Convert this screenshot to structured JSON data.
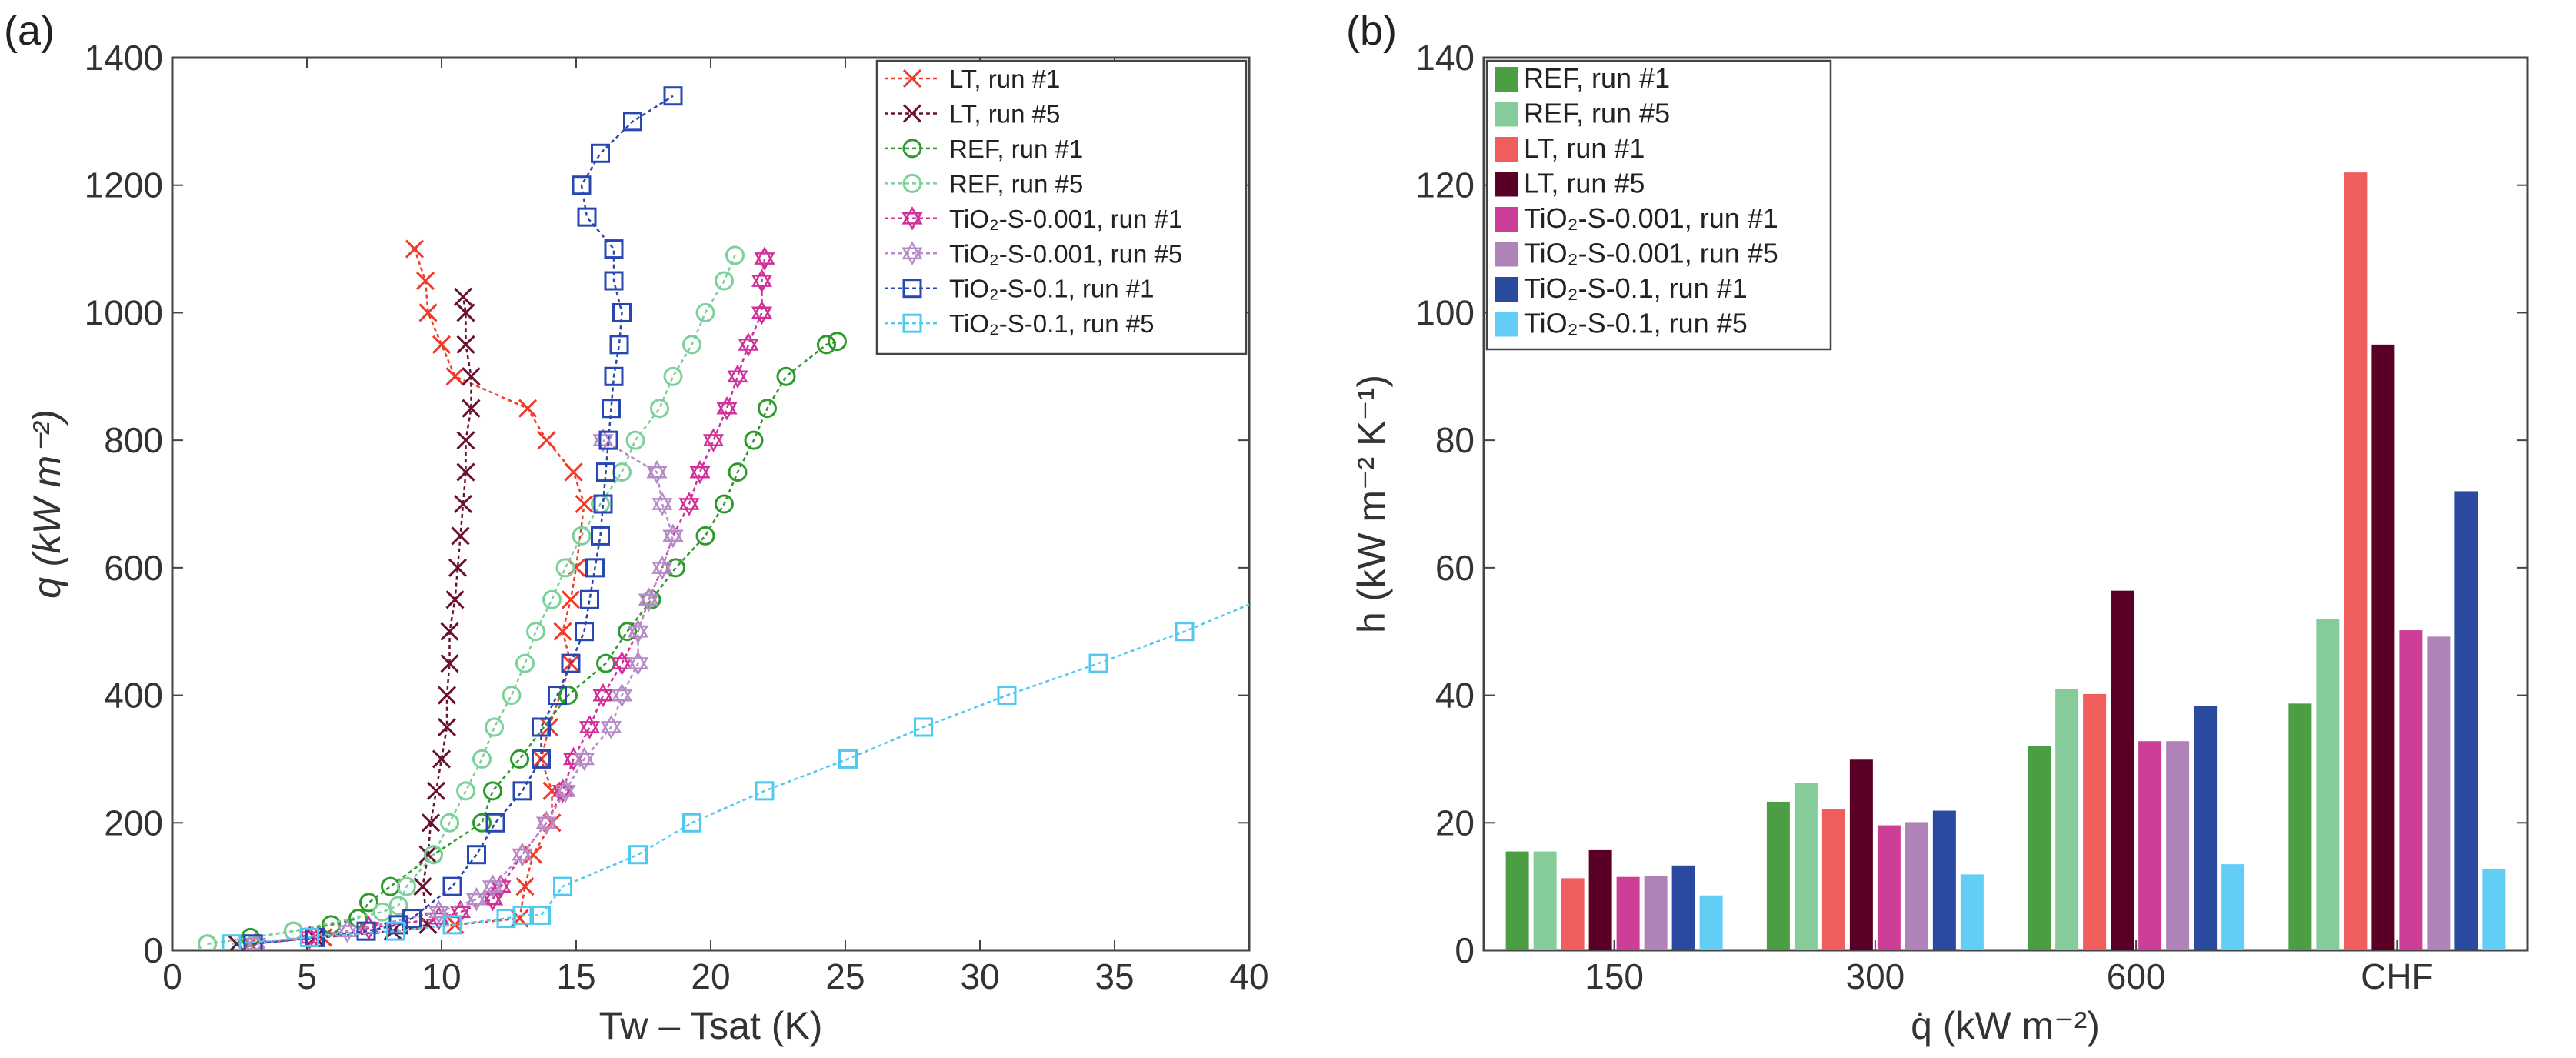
{
  "chart_data": [
    {
      "panel_label": "(a)",
      "type": "line",
      "xlabel": "Tw – Tsat (K)",
      "ylabel": "q (kW m⁻²)",
      "xlim": [
        0,
        40
      ],
      "ylim": [
        0,
        1400
      ],
      "xticks": [
        0,
        5,
        10,
        15,
        20,
        25,
        30,
        35,
        40
      ],
      "yticks": [
        0,
        200,
        400,
        600,
        800,
        1000,
        1200,
        1400
      ],
      "legend_position": "top-right",
      "series": [
        {
          "name": "LT, run #1",
          "color": "#f03a2a",
          "marker": "x",
          "x": [
            2.9,
            5.6,
            8.2,
            10.5,
            12.9,
            13.1,
            13.4,
            14.1,
            14.1,
            13.7,
            14.0,
            14.8,
            14.5,
            14.8,
            15.0,
            15.3,
            14.9,
            13.9,
            13.2,
            10.5,
            10.0,
            9.5,
            9.4,
            9.0
          ],
          "y": [
            10,
            20,
            30,
            40,
            50,
            100,
            150,
            200,
            250,
            300,
            350,
            450,
            500,
            550,
            600,
            700,
            750,
            800,
            850,
            900,
            950,
            1000,
            1050,
            1100
          ]
        },
        {
          "name": "LT, run #5",
          "color": "#6a1030",
          "marker": "x",
          "x": [
            2.4,
            5.3,
            8.2,
            9.5,
            9.3,
            9.5,
            9.6,
            9.8,
            10.0,
            10.2,
            10.2,
            10.3,
            10.3,
            10.5,
            10.6,
            10.7,
            10.8,
            10.9,
            10.9,
            11.1,
            11.1,
            10.9,
            10.9,
            10.8
          ],
          "y": [
            10,
            20,
            30,
            40,
            100,
            150,
            200,
            250,
            300,
            350,
            400,
            450,
            500,
            550,
            600,
            650,
            700,
            750,
            800,
            850,
            900,
            950,
            1000,
            1025
          ]
        },
        {
          "name": "REF, run #1",
          "color": "#2e9a2e",
          "marker": "o",
          "x": [
            1.3,
            2.9,
            4.5,
            5.9,
            6.9,
            7.3,
            8.1,
            9.7,
            11.5,
            11.9,
            12.9,
            14.7,
            16.1,
            16.9,
            17.8,
            18.7,
            19.8,
            20.5,
            21.0,
            21.6,
            22.1,
            22.8,
            24.3,
            24.7
          ],
          "y": [
            10,
            20,
            30,
            40,
            50,
            75,
            100,
            150,
            200,
            250,
            300,
            400,
            450,
            500,
            550,
            600,
            650,
            700,
            750,
            800,
            850,
            900,
            950,
            955
          ]
        },
        {
          "name": "REF, run #5",
          "color": "#7dd09a",
          "marker": "o",
          "x": [
            1.3,
            4.5,
            7.8,
            8.4,
            8.7,
            9.7,
            10.3,
            10.9,
            11.5,
            11.96,
            12.6,
            13.1,
            13.5,
            14.1,
            14.6,
            15.2,
            15.9,
            16.7,
            17.2,
            18.1,
            18.6,
            19.3,
            19.8,
            20.5,
            20.9
          ],
          "y": [
            10,
            30,
            60,
            70,
            100,
            150,
            200,
            250,
            300,
            350,
            400,
            450,
            500,
            550,
            600,
            650,
            700,
            750,
            800,
            850,
            900,
            950,
            1000,
            1050,
            1090
          ]
        },
        {
          "name": "TiO₂-S-0.001, run #1",
          "color": "#d0309a",
          "marker": "star",
          "x": [
            3.1,
            5.1,
            7.3,
            9.9,
            10.7,
            11.9,
            12.2,
            13.0,
            13.9,
            14.5,
            14.9,
            15.5,
            16.0,
            16.7,
            17.3,
            17.7,
            18.2,
            18.6,
            19.2,
            19.6,
            20.1,
            20.6,
            21.0,
            21.4,
            21.9,
            21.9,
            22.0
          ],
          "y": [
            10,
            20,
            35,
            50,
            60,
            80,
            100,
            150,
            200,
            250,
            300,
            350,
            400,
            450,
            500,
            550,
            600,
            650,
            700,
            750,
            800,
            850,
            900,
            950,
            1000,
            1050,
            1085
          ]
        },
        {
          "name": "TiO₂-S-0.001, run #5",
          "color": "#b58cc8",
          "marker": "star",
          "x": [
            3.1,
            6.5,
            9.9,
            11.3,
            11.9,
            13.0,
            13.9,
            14.6,
            15.3,
            16.3,
            16.7,
            17.3,
            17.3,
            17.7,
            18.2,
            18.6,
            18.2,
            18.0,
            16.0
          ],
          "y": [
            10,
            30,
            60,
            80,
            100,
            150,
            200,
            250,
            300,
            350,
            400,
            450,
            500,
            550,
            600,
            650,
            700,
            750,
            800
          ]
        },
        {
          "name": "TiO₂-S-0.1, run #1",
          "color": "#2848b0",
          "marker": "square",
          "x": [
            3.0,
            5.3,
            7.2,
            8.4,
            8.9,
            10.4,
            11.3,
            12.0,
            13.0,
            13.7,
            13.7,
            14.3,
            14.8,
            15.3,
            15.5,
            15.7,
            15.9,
            16.0,
            16.1,
            16.2,
            16.3,
            16.4,
            16.6,
            16.7,
            16.4,
            16.4,
            15.4,
            15.2,
            15.9,
            17.1,
            18.6
          ],
          "y": [
            10,
            20,
            30,
            40,
            50,
            100,
            150,
            200,
            250,
            300,
            350,
            400,
            450,
            500,
            550,
            600,
            650,
            700,
            750,
            800,
            850,
            900,
            950,
            1000,
            1050,
            1100,
            1150,
            1200,
            1250,
            1300,
            1340
          ]
        },
        {
          "name": "TiO₂-S-0.1, run #5",
          "color": "#50c8f0",
          "marker": "square",
          "x": [
            2.2,
            5.1,
            8.3,
            10.4,
            12.4,
            13.0,
            13.7,
            14.5,
            17.3,
            19.3,
            22.0,
            25.1,
            27.9,
            31.0,
            34.4,
            37.6,
            41.0
          ],
          "y": [
            10,
            20,
            30,
            40,
            50,
            55,
            55,
            100,
            150,
            200,
            250,
            300,
            350,
            400,
            450,
            500,
            560
          ]
        }
      ]
    },
    {
      "panel_label": "(b)",
      "type": "bar",
      "xlabel": "q̇ (kW m⁻²)",
      "ylabel": "h (kW m⁻² K⁻¹)",
      "ylim": [
        0,
        140
      ],
      "yticks": [
        0,
        20,
        40,
        60,
        80,
        100,
        120,
        140
      ],
      "legend_position": "top-left",
      "categories": [
        "150",
        "300",
        "600",
        "CHF"
      ],
      "series": [
        {
          "name": "REF, run #1",
          "color": "#4c9e45",
          "values": [
            15.5,
            23.3,
            32.0,
            38.7
          ]
        },
        {
          "name": "REF, run #5",
          "color": "#86cc9a",
          "values": [
            15.5,
            26.2,
            41.0,
            52.0
          ]
        },
        {
          "name": "LT, run #1",
          "color": "#ef5d5d",
          "values": [
            11.3,
            22.2,
            40.2,
            122.0
          ]
        },
        {
          "name": "LT, run #5",
          "color": "#5a0026",
          "values": [
            15.7,
            29.9,
            56.4,
            95.0
          ]
        },
        {
          "name": "TiO₂-S-0.001, run #1",
          "color": "#cc3e98",
          "values": [
            11.5,
            19.6,
            32.8,
            50.2
          ]
        },
        {
          "name": "TiO₂-S-0.001, run #5",
          "color": "#b083b8",
          "values": [
            11.6,
            20.1,
            32.8,
            49.2
          ]
        },
        {
          "name": "TiO₂-S-0.1, run #1",
          "color": "#2a4aa0",
          "values": [
            13.3,
            21.9,
            38.3,
            72.0
          ]
        },
        {
          "name": "TiO₂-S-0.1, run #5",
          "color": "#62cdf5",
          "values": [
            8.6,
            11.9,
            13.5,
            12.7
          ]
        }
      ]
    }
  ]
}
